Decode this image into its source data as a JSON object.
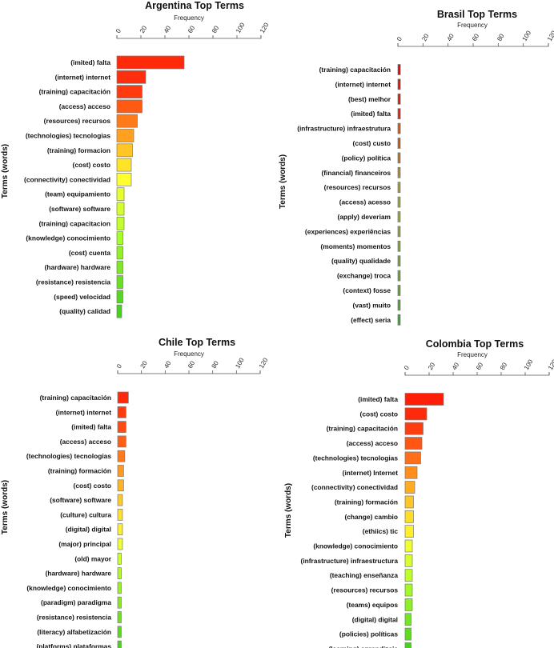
{
  "chart_data": [
    {
      "type": "bar",
      "orientation": "horizontal",
      "title": "Argentina Top Terms",
      "xlabel": "Frequency",
      "ylabel": "Terms (words)",
      "xlim": [
        0,
        120
      ],
      "xticks": [
        "0",
        "20",
        "40",
        "60",
        "80",
        "100",
        "120"
      ],
      "categories": [
        "(imited) falta",
        "(internet) internet",
        "(training) capacitación",
        "(access) acceso",
        "(resources) recursos",
        "(technologies) tecnologias",
        "(training) formacion",
        "(cost) costo",
        "(connectivity) conectividad",
        "(team) equipamiento",
        "(software) software",
        "(training) capacitacion",
        "(knowledge) conocimiento",
        "(cost) cuenta",
        "(hardware) hardware",
        "(resistance) resistencia",
        "(speed) velocidad",
        "(quality) calidad"
      ],
      "values": [
        56,
        24,
        21,
        21,
        17,
        14,
        13,
        12,
        12,
        6,
        6,
        6,
        5,
        5,
        5,
        5,
        5,
        4
      ],
      "colors": [
        "#ff2a0a",
        "#ff2e0c",
        "#ff3a10",
        "#ff5a14",
        "#ff7a18",
        "#ffa020",
        "#ffc626",
        "#ffe22a",
        "#ffff30",
        "#e6ff2e",
        "#d4ff2c",
        "#c2ff2a",
        "#a6ff28",
        "#92f026",
        "#7ee826",
        "#6ae024",
        "#56d822",
        "#46d020"
      ]
    },
    {
      "type": "bar",
      "orientation": "horizontal",
      "title": "Brasil Top Terms",
      "xlabel": "Frequency",
      "ylabel": "Terms (words)",
      "xlim": [
        0,
        120
      ],
      "xticks": [
        "0",
        "20",
        "40",
        "60",
        "80",
        "100",
        "120"
      ],
      "categories": [
        "(training) capacitación",
        "(internet) internet",
        "(best) melhor",
        "(imited) falta",
        "(infrastructure) infraestrutura",
        "(cost) custo",
        "(policy) política",
        "(financial) financeiros",
        "(resources) recursos",
        "(access) acesso",
        "(apply) deveriam",
        "(experiences) experiências",
        "(moments) momentos",
        "(quality) qualidade",
        "(exchange) troca",
        "(context) fosse",
        "(vast) muito",
        "(effect) seria"
      ],
      "values": [
        2,
        2,
        2,
        2,
        2,
        1,
        1,
        1,
        1,
        1,
        1,
        1,
        1,
        1,
        1,
        1,
        1,
        1
      ],
      "colors": [
        "#d40e0e",
        "#d41a10",
        "#d42012",
        "#d02a14",
        "#d05a18",
        "#b85a20",
        "#b0742c",
        "#a88a36",
        "#a4963a",
        "#9aa03e",
        "#92a440",
        "#8aa042",
        "#80a040",
        "#76a03e",
        "#6aa03c",
        "#5ea03a",
        "#52a038",
        "#469c36"
      ]
    },
    {
      "type": "bar",
      "orientation": "horizontal",
      "title": "Chile Top Terms",
      "xlabel": "Frequency",
      "ylabel": "Terms (words)",
      "xlim": [
        0,
        120
      ],
      "xticks": [
        "0",
        "20",
        "40",
        "60",
        "80",
        "100",
        "120"
      ],
      "categories": [
        "(training) capacitación",
        "(internet) internet",
        "(imited) falta",
        "(access) acceso",
        "(technologies) tecnologias",
        "(training) formación",
        "(cost) costo",
        "(software) software",
        "(culture) cultura",
        "(digital) digital",
        "(major) principal",
        "(old) mayor",
        "(hardware) hardware",
        "(knowledge) conocimiento",
        "(paradigm) paradigma",
        "(resistance) resistencia",
        "(literacy) alfabetización",
        "(platforms) plataformas"
      ],
      "values": [
        9,
        7,
        7,
        7,
        6,
        5,
        5,
        4,
        4,
        4,
        4,
        3,
        3,
        3,
        3,
        3,
        3,
        3
      ],
      "colors": [
        "#ff2a0a",
        "#ff3a0e",
        "#ff4a12",
        "#ff5e16",
        "#ff7a1a",
        "#ff9a1e",
        "#ffb422",
        "#ffcc26",
        "#ffe02a",
        "#fff02e",
        "#f0ff30",
        "#ccff2e",
        "#b0f82c",
        "#9cf02a",
        "#88e828",
        "#70e026",
        "#5cd824",
        "#4cd022"
      ]
    },
    {
      "type": "bar",
      "orientation": "horizontal",
      "title": "Colombia Top Terms",
      "xlabel": "Frequency",
      "ylabel": "Terms (words)",
      "xlim": [
        0,
        120
      ],
      "xticks": [
        "0",
        "20",
        "40",
        "60",
        "80",
        "100",
        "120"
      ],
      "categories": [
        "(imited) falta",
        "(cost) costo",
        "(training) capacitación",
        "(access) acceso",
        "(technologies) tecnologias",
        "(internet) Internet",
        "(connectivity) conectividad",
        "(training) formación",
        "(change) cambio",
        "(ethiics) tic",
        "(knowledge) conocimiento",
        "(infrastructure) infraestructura",
        "(teaching) enseñanza",
        "(resources) recursos",
        "(teams) equipos",
        "(digital) digital",
        "(policies) políticas",
        "(learning) aprendizaje"
      ],
      "values": [
        32,
        18,
        15,
        14,
        13,
        10,
        8,
        7,
        7,
        7,
        6,
        6,
        6,
        6,
        6,
        5,
        5,
        5
      ],
      "colors": [
        "#ff1e08",
        "#ff2a0c",
        "#ff3e10",
        "#ff5614",
        "#ff6e18",
        "#ff8e1c",
        "#ffac20",
        "#ffc624",
        "#ffdc28",
        "#fff02c",
        "#f0ff2e",
        "#d6ff2c",
        "#beff2a",
        "#a4f828",
        "#8cf026",
        "#74e624",
        "#5edc22",
        "#4ad220"
      ]
    }
  ]
}
